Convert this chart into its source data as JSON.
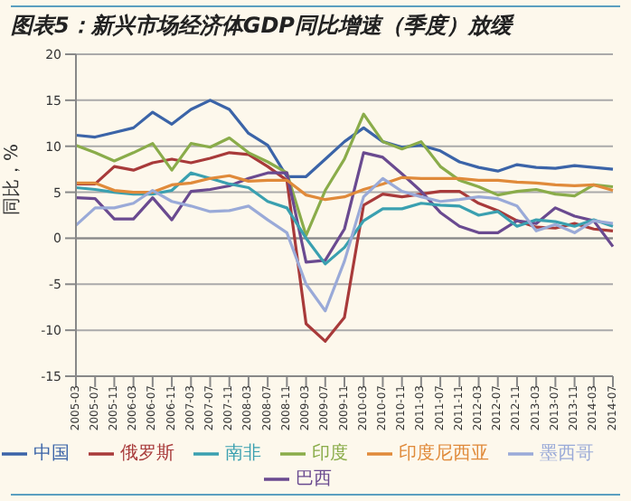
{
  "chart_data": {
    "type": "line",
    "title": "图表5：新兴市场经济体GDP同比增速（季度）放缓",
    "ylabel": "同比，%",
    "categories": [
      "2005-03",
      "2005-07",
      "2005-11",
      "2006-03",
      "2006-07",
      "2006-11",
      "2007-03",
      "2007-07",
      "2007-11",
      "2008-03",
      "2008-07",
      "2008-11",
      "2009-03",
      "2009-07",
      "2009-11",
      "2010-03",
      "2010-07",
      "2010-11",
      "2011-03",
      "2011-07",
      "2011-11",
      "2012-03",
      "2012-07",
      "2012-11",
      "2013-03",
      "2013-07",
      "2013-11",
      "2014-03",
      "2014-07"
    ],
    "series": [
      {
        "name": "中国",
        "color": "#3b64a8",
        "values": [
          11.2,
          11,
          11.5,
          12,
          13.7,
          12.4,
          14,
          15,
          14,
          11.4,
          10.1,
          6.7,
          6.7,
          8.6,
          10.5,
          12,
          10.5,
          9.9,
          10.1,
          9.5,
          8.3,
          7.7,
          7.3,
          8,
          7.7,
          7.6,
          7.9,
          7.7,
          7.5
        ]
      },
      {
        "name": "俄罗斯",
        "color": "#a83a3a",
        "values": [
          5.9,
          5.9,
          7.8,
          7.4,
          8.2,
          8.6,
          8.2,
          8.7,
          9.3,
          9.1,
          7.8,
          6.3,
          -9.3,
          -11.2,
          -8.6,
          3.6,
          4.8,
          4.5,
          4.8,
          5.1,
          5.1,
          3.8,
          3,
          1.9,
          1.2,
          1.1,
          1.6,
          1,
          0.8
        ]
      },
      {
        "name": "印度",
        "color": "#8aac4a",
        "values": [
          10.1,
          9.3,
          8.4,
          9.3,
          10.3,
          7.4,
          10.3,
          9.9,
          10.9,
          9.3,
          8.3,
          7.1,
          0.3,
          5.2,
          8.6,
          13.5,
          10.5,
          9.7,
          10.5,
          7.8,
          6.3,
          5.6,
          4.7,
          5.1,
          5.3,
          4.8,
          4.6,
          5.8,
          5.6
        ]
      },
      {
        "name": "巴西",
        "color": "#6a4a90",
        "values": [
          4.4,
          4.3,
          2.1,
          2.1,
          4.4,
          2,
          5.1,
          5.3,
          5.7,
          6.5,
          7.1,
          7.1,
          -2.6,
          -2.4,
          1,
          9.3,
          8.8,
          7,
          5.1,
          2.8,
          1.3,
          0.6,
          0.6,
          1.9,
          1.6,
          3.3,
          2.4,
          1.9,
          -0.9
        ]
      },
      {
        "name": "南非",
        "color": "#3aa0b0",
        "values": [
          5.5,
          5.3,
          5,
          4.8,
          4.8,
          5.2,
          7.1,
          6.5,
          5.9,
          5.5,
          4,
          3.3,
          0,
          -2.8,
          -1,
          1.9,
          3.2,
          3.2,
          3.8,
          3.6,
          3.5,
          2.5,
          2.9,
          1.3,
          2,
          1.8,
          1.3,
          2,
          1.3
        ]
      },
      {
        "name": "印度尼西亚",
        "color": "#e08a3a",
        "values": [
          6,
          6,
          5.2,
          5,
          5,
          5.8,
          6,
          6.5,
          6.8,
          6.2,
          6.3,
          6.3,
          4.7,
          4.2,
          4.5,
          5.3,
          5.9,
          6.6,
          6.5,
          6.5,
          6.5,
          6.3,
          6.3,
          6.1,
          6,
          5.8,
          5.7,
          5.8,
          5.2
        ]
      },
      {
        "name": "墨西哥",
        "color": "#9aaad8",
        "values": [
          1.4,
          3.3,
          3.3,
          3.8,
          5.2,
          4,
          3.5,
          2.9,
          3,
          3.5,
          2,
          0.6,
          -5,
          -7.9,
          -2.5,
          4.5,
          6.5,
          5.1,
          4.5,
          4,
          4.2,
          4.5,
          4.3,
          3.5,
          0.8,
          1.5,
          0.6,
          1.9,
          1.6
        ]
      }
    ],
    "ylim": [
      -15,
      20
    ],
    "yticks": [
      -15,
      -10,
      -5,
      0,
      5,
      10,
      15,
      20
    ],
    "grid": "y",
    "legend": "bottom",
    "marker": "none",
    "line_style": "solid"
  }
}
